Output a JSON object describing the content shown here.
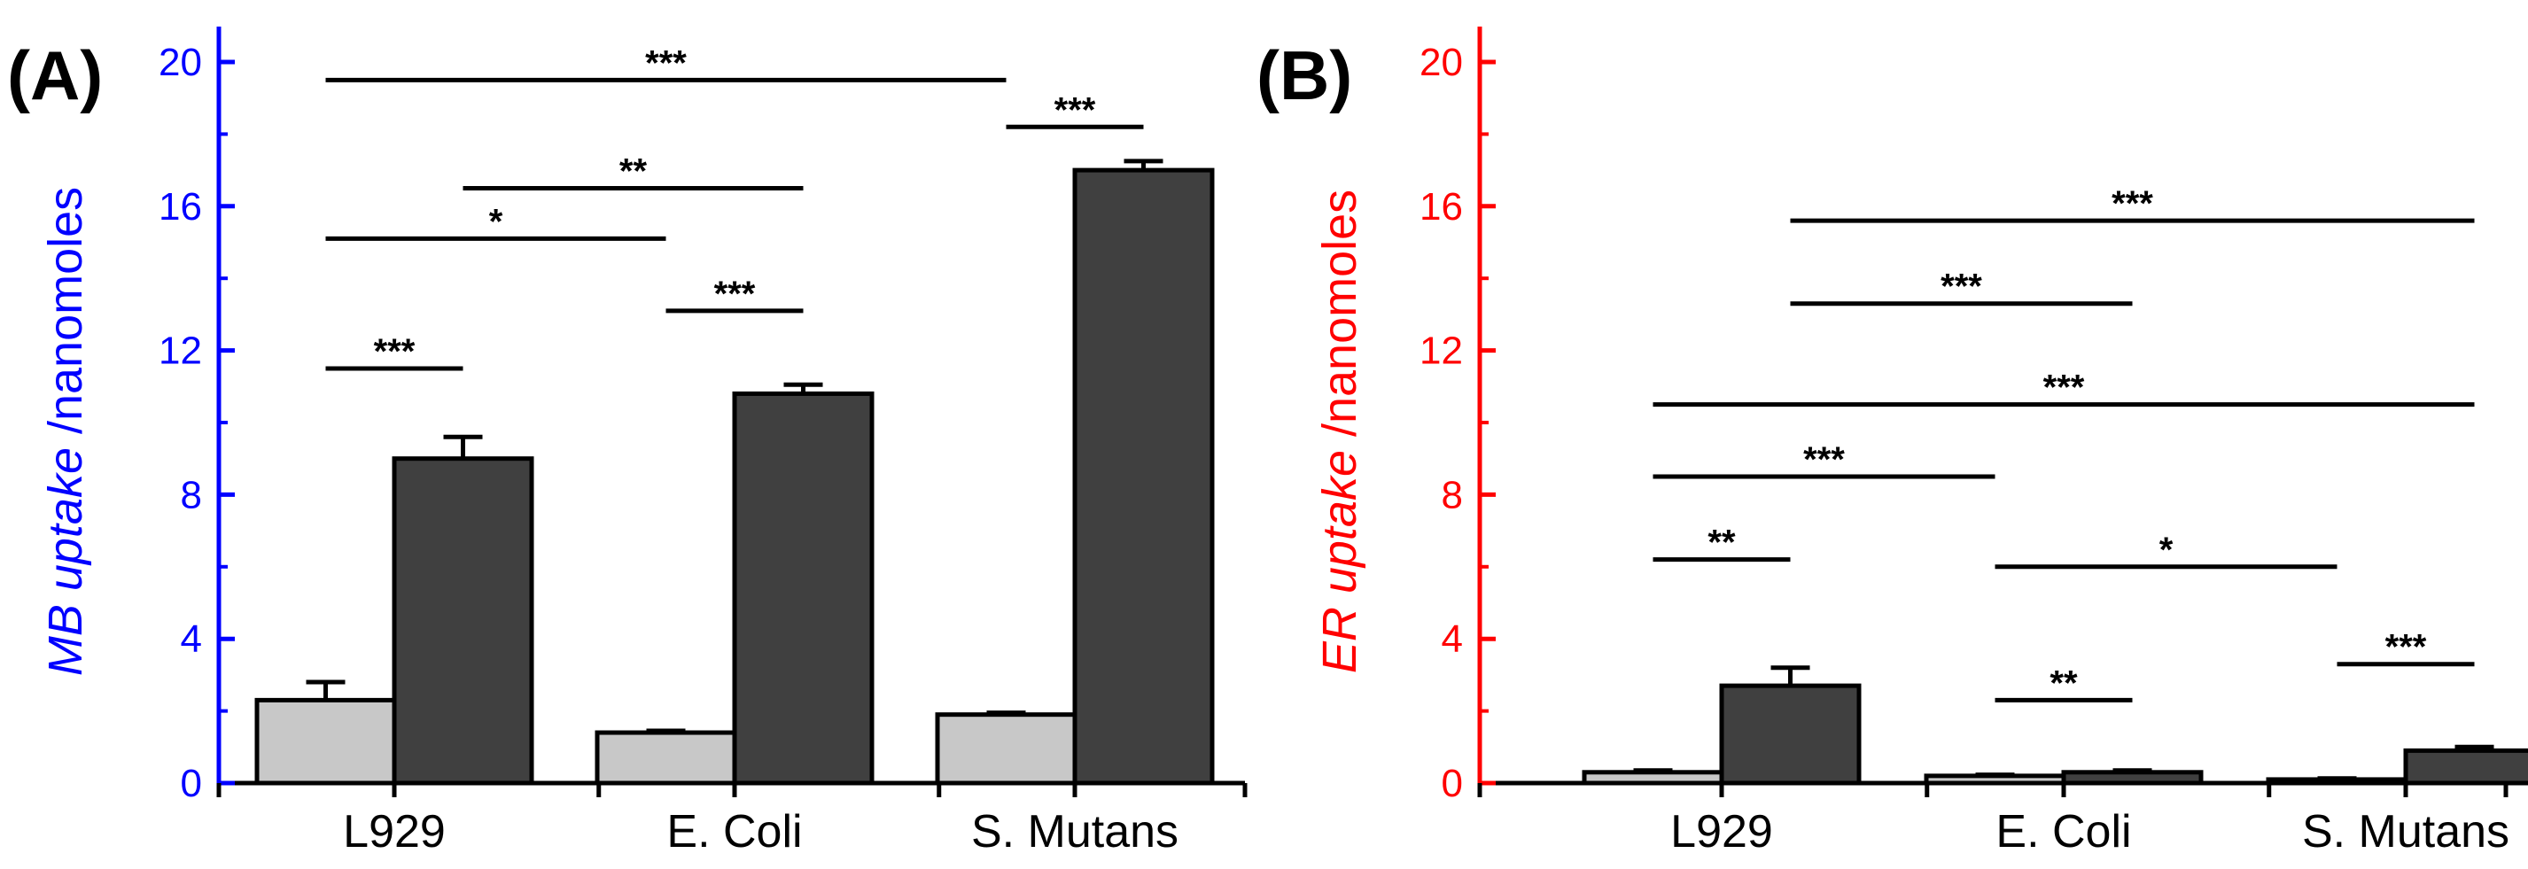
{
  "chart_data": [
    {
      "type": "bar",
      "panel_label": "(A)",
      "categories": [
        "L929",
        "E. Coli",
        "S. Mutans"
      ],
      "series": [
        {
          "name": "light",
          "color": "#c8c8c8",
          "values": [
            2.3,
            1.4,
            1.9
          ],
          "errors": [
            0.5,
            0.05,
            0.05
          ]
        },
        {
          "name": "dark",
          "color": "#404040",
          "values": [
            9.0,
            10.8,
            17.0
          ],
          "errors": [
            0.6,
            0.25,
            0.25
          ]
        }
      ],
      "ylim": [
        0,
        20
      ],
      "yticks": [
        "0",
        "4",
        "8",
        "12",
        "16",
        "20"
      ],
      "ylabel_italic": "MB uptake",
      "ylabel_rest": " /nanomoles",
      "axis_color": "#0000ff",
      "significance": [
        {
          "from": [
            0,
            0
          ],
          "to": [
            0,
            1
          ],
          "y": 11.5,
          "label": "***"
        },
        {
          "from": [
            0,
            0
          ],
          "to": [
            1,
            0
          ],
          "y": 15.1,
          "label": "*"
        },
        {
          "from": [
            0,
            1
          ],
          "to": [
            1,
            1
          ],
          "y": 16.5,
          "label": "**"
        },
        {
          "from": [
            1,
            0
          ],
          "to": [
            1,
            1
          ],
          "y": 13.1,
          "label": "***"
        },
        {
          "from": [
            2,
            0
          ],
          "to": [
            2,
            1
          ],
          "y": 18.2,
          "label": "***"
        },
        {
          "from": [
            0,
            0
          ],
          "to": [
            2,
            0
          ],
          "y": 19.5,
          "label": "***"
        }
      ]
    },
    {
      "type": "bar",
      "panel_label": "(B)",
      "categories": [
        "L929",
        "E. Coli",
        "S. Mutans"
      ],
      "series": [
        {
          "name": "light",
          "color": "#c8c8c8",
          "values": [
            0.3,
            0.2,
            0.1
          ],
          "errors": [
            0.05,
            0.03,
            0.03
          ]
        },
        {
          "name": "dark",
          "color": "#404040",
          "values": [
            2.7,
            0.3,
            0.9
          ],
          "errors": [
            0.5,
            0.05,
            0.1
          ]
        }
      ],
      "ylim": [
        0,
        20
      ],
      "yticks": [
        "0",
        "4",
        "8",
        "12",
        "16",
        "20"
      ],
      "ylabel_italic": "ER uptake",
      "ylabel_rest": " /nanomoles",
      "axis_color": "#ff0000",
      "significance": [
        {
          "from": [
            0,
            0
          ],
          "to": [
            0,
            1
          ],
          "y": 6.2,
          "label": "**"
        },
        {
          "from": [
            0,
            0
          ],
          "to": [
            1,
            0
          ],
          "y": 8.5,
          "label": "***"
        },
        {
          "from": [
            1,
            0
          ],
          "to": [
            2,
            0
          ],
          "y": 6.0,
          "label": "*"
        },
        {
          "from": [
            1,
            0
          ],
          "to": [
            1,
            1
          ],
          "y": 2.3,
          "label": "**"
        },
        {
          "from": [
            2,
            0
          ],
          "to": [
            2,
            1
          ],
          "y": 3.3,
          "label": "***"
        },
        {
          "from": [
            0,
            0
          ],
          "to": [
            2,
            1
          ],
          "y": 10.5,
          "label": "***"
        },
        {
          "from": [
            0,
            1
          ],
          "to": [
            1,
            1
          ],
          "y": 13.3,
          "label": "***"
        },
        {
          "from": [
            0,
            1
          ],
          "to": [
            2,
            1
          ],
          "y": 15.6,
          "label": "***"
        }
      ]
    }
  ]
}
